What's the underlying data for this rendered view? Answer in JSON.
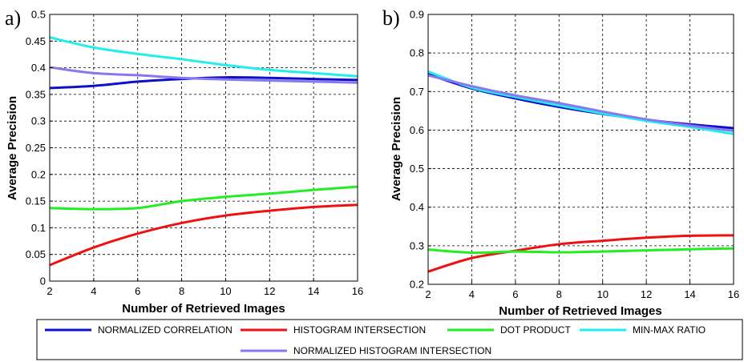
{
  "chart_data": [
    {
      "panel_label": "a)",
      "type": "line",
      "xlabel": "Number of Retrieved Images",
      "ylabel": "Average Precision",
      "xlim": [
        2,
        16
      ],
      "ylim": [
        0,
        0.5
      ],
      "xticks": [
        "2",
        "4",
        "6",
        "8",
        "10",
        "12",
        "14",
        "16"
      ],
      "yticks": [
        "0",
        "0.05",
        "0.1",
        "0.15",
        "0.2",
        "0.25",
        "0.3",
        "0.35",
        "0.4",
        "0.45",
        "0.5"
      ],
      "grid": true,
      "x": [
        2,
        4,
        6,
        8,
        10,
        12,
        14,
        16
      ],
      "series": [
        {
          "name": "NORMALIZED CORRELATION",
          "color": "#1010cc",
          "values": [
            0.362,
            0.366,
            0.374,
            0.379,
            0.382,
            0.381,
            0.379,
            0.377
          ]
        },
        {
          "name": "HISTOGRAM INTERSECTION",
          "color": "#ee1111",
          "values": [
            0.03,
            0.063,
            0.089,
            0.109,
            0.123,
            0.132,
            0.139,
            0.143
          ]
        },
        {
          "name": "DOT PRODUCT",
          "color": "#22ee22",
          "values": [
            0.137,
            0.135,
            0.137,
            0.15,
            0.158,
            0.164,
            0.171,
            0.177
          ]
        },
        {
          "name": "MIN-MAX RATIO",
          "color": "#22eeee",
          "values": [
            0.457,
            0.438,
            0.426,
            0.416,
            0.405,
            0.396,
            0.39,
            0.384
          ]
        },
        {
          "name": "NORMALIZED HISTOGRAM INTERSECTION",
          "color": "#8877ee",
          "values": [
            0.401,
            0.39,
            0.386,
            0.381,
            0.378,
            0.376,
            0.374,
            0.372
          ]
        }
      ]
    },
    {
      "panel_label": "b)",
      "type": "line",
      "xlabel": "Number of Retrieved Images",
      "ylabel": "Average Precision",
      "xlim": [
        2,
        16
      ],
      "ylim": [
        0.2,
        0.9
      ],
      "xticks": [
        "2",
        "4",
        "6",
        "8",
        "10",
        "12",
        "14",
        "16"
      ],
      "yticks": [
        "0.2",
        "0.3",
        "0.4",
        "0.5",
        "0.6",
        "0.7",
        "0.8",
        "0.9"
      ],
      "grid": true,
      "x": [
        2,
        4,
        6,
        8,
        10,
        12,
        14,
        16
      ],
      "series": [
        {
          "name": "NORMALIZED CORRELATION",
          "color": "#1010cc",
          "values": [
            0.745,
            0.708,
            0.682,
            0.66,
            0.642,
            0.627,
            0.615,
            0.605
          ]
        },
        {
          "name": "HISTOGRAM INTERSECTION",
          "color": "#ee1111",
          "values": [
            0.233,
            0.268,
            0.287,
            0.304,
            0.313,
            0.321,
            0.326,
            0.327
          ]
        },
        {
          "name": "DOT PRODUCT",
          "color": "#22ee22",
          "values": [
            0.29,
            0.282,
            0.285,
            0.283,
            0.285,
            0.288,
            0.291,
            0.293
          ]
        },
        {
          "name": "MIN-MAX RATIO",
          "color": "#22eeee",
          "values": [
            0.752,
            0.71,
            0.686,
            0.664,
            0.643,
            0.624,
            0.608,
            0.59
          ]
        },
        {
          "name": "NORMALIZED HISTOGRAM INTERSECTION",
          "color": "#8877ee",
          "values": [
            0.742,
            0.714,
            0.69,
            0.67,
            0.648,
            0.628,
            0.612,
            0.598
          ]
        }
      ]
    }
  ],
  "legend": {
    "placement": "bottom",
    "entries": [
      {
        "label": "NORMALIZED CORRELATION",
        "color": "#1010cc"
      },
      {
        "label": "HISTOGRAM INTERSECTION",
        "color": "#ee1111"
      },
      {
        "label": "DOT PRODUCT",
        "color": "#22ee22"
      },
      {
        "label": "MIN-MAX RATIO",
        "color": "#22eeee"
      },
      {
        "label": "NORMALIZED HISTOGRAM INTERSECTION",
        "color": "#8877ee"
      }
    ]
  }
}
